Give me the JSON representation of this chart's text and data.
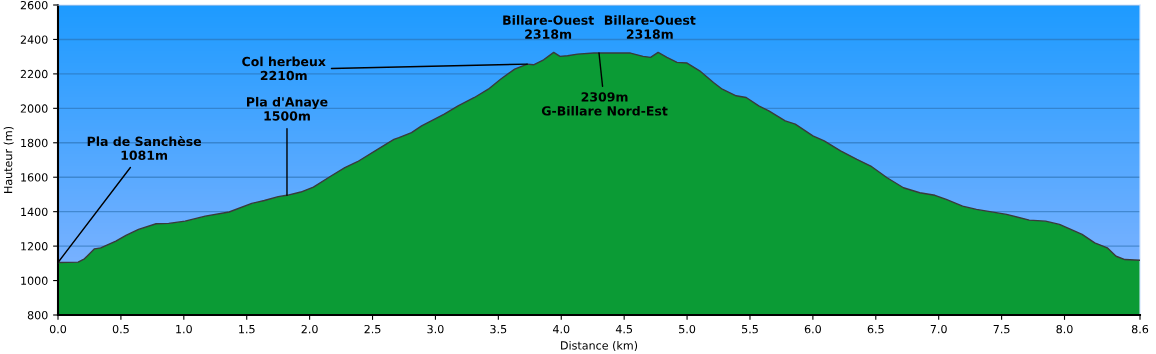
{
  "chart_data": {
    "type": "area",
    "xlabel": "Distance (km)",
    "ylabel": "Hauteur (m)",
    "xlim": [
      0,
      8.6
    ],
    "ylim": [
      800,
      2600
    ],
    "xticks": [
      {
        "value": 0,
        "label": "0.0"
      },
      {
        "value": 0.5,
        "label": "0.5"
      },
      {
        "value": 1,
        "label": "1.0"
      },
      {
        "value": 1.5,
        "label": "1.5"
      },
      {
        "value": 2,
        "label": "2.0"
      },
      {
        "value": 2.5,
        "label": "2.5"
      },
      {
        "value": 3,
        "label": "3.0"
      },
      {
        "value": 3.5,
        "label": "3.5"
      },
      {
        "value": 4,
        "label": "4.0"
      },
      {
        "value": 4.5,
        "label": "4.5"
      },
      {
        "value": 5,
        "label": "5.0"
      },
      {
        "value": 5.5,
        "label": "5.5"
      },
      {
        "value": 6,
        "label": "6.0"
      },
      {
        "value": 6.5,
        "label": "6.5"
      },
      {
        "value": 7,
        "label": "7.0"
      },
      {
        "value": 7.5,
        "label": "7.5"
      },
      {
        "value": 8,
        "label": "8.0"
      },
      {
        "value": 8.6,
        "label": "8.6"
      }
    ],
    "yticks": [
      800,
      1000,
      1200,
      1400,
      1600,
      1800,
      2000,
      2200,
      2400,
      2600
    ],
    "grid": "y",
    "series": [
      {
        "color": "#0b9b35",
        "x": [
          0,
          0.16,
          0.21,
          0.29,
          0.34,
          0.46,
          0.54,
          0.64,
          0.78,
          0.88,
          1.01,
          1.17,
          1.36,
          1.54,
          1.64,
          1.75,
          1.82,
          1.93,
          2.03,
          2.17,
          2.28,
          2.38,
          2.54,
          2.67,
          2.71,
          2.81,
          2.89,
          3.07,
          3.18,
          3.31,
          3.42,
          3.52,
          3.63,
          3.73,
          3.78,
          3.86,
          3.94,
          3.99,
          4.05,
          4.13,
          4.26,
          4.39,
          4.55,
          4.65,
          4.71,
          4.77,
          4.84,
          4.92,
          5.0,
          5.1,
          5.21,
          5.28,
          5.39,
          5.47,
          5.57,
          5.65,
          5.78,
          5.86,
          6.0,
          6.09,
          6.22,
          6.35,
          6.46,
          6.59,
          6.72,
          6.85,
          6.97,
          7.06,
          7.19,
          7.3,
          7.54,
          7.72,
          7.85,
          7.96,
          8.14,
          8.24,
          8.34,
          8.41,
          8.48,
          8.6
        ],
        "values": [
          1105,
          1107,
          1126,
          1184,
          1190,
          1229,
          1262,
          1297,
          1330,
          1332,
          1345,
          1374,
          1398,
          1448,
          1465,
          1487,
          1495,
          1514,
          1543,
          1607,
          1656,
          1690,
          1762,
          1820,
          1830,
          1859,
          1898,
          1966,
          2014,
          2063,
          2111,
          2170,
          2228,
          2257,
          2253,
          2282,
          2325,
          2302,
          2305,
          2315,
          2321,
          2321,
          2321,
          2302,
          2296,
          2325,
          2296,
          2267,
          2263,
          2218,
          2150,
          2111,
          2073,
          2063,
          2014,
          1985,
          1927,
          1908,
          1840,
          1811,
          1753,
          1704,
          1665,
          1597,
          1539,
          1510,
          1495,
          1471,
          1432,
          1413,
          1384,
          1351,
          1345,
          1326,
          1268,
          1219,
          1190,
          1141,
          1122,
          1118
        ]
      }
    ],
    "annotations": [
      {
        "text": "Pla de Sanchèse\n1081m",
        "x": 0,
        "y": 1105
      },
      {
        "text": "Pla d'Anaye\n1500m",
        "x": 1.82,
        "y": 1495
      },
      {
        "text": "Col herbeux\n2210m",
        "x": 3.73,
        "y": 2257
      },
      {
        "text": "Billare-Ouest\n2318m",
        "x": 3.94,
        "y": 2325
      },
      {
        "text": "Billare-Ouest\n2318m",
        "x": 4.77,
        "y": 2325
      },
      {
        "text": "2309m\nG-Billare Nord-Est",
        "x": 4.3,
        "y": 2321
      }
    ]
  }
}
